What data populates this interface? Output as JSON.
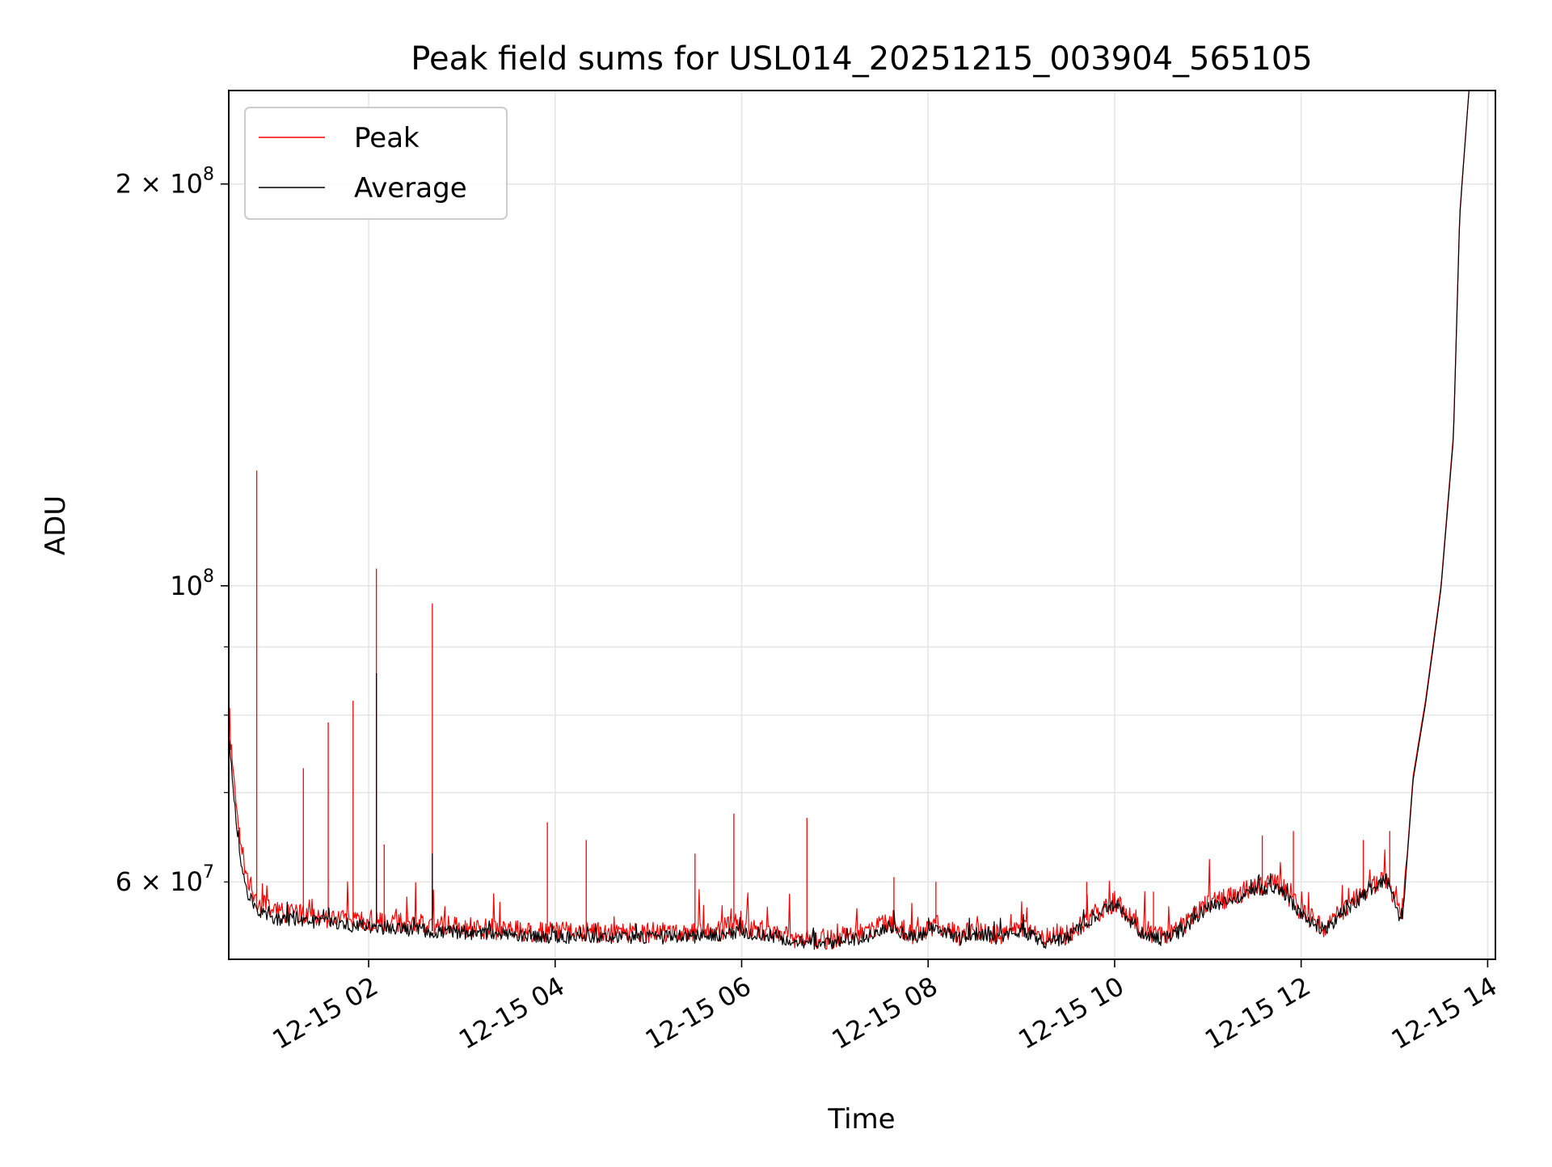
{
  "chart_data": {
    "type": "line",
    "title": "Peak field sums for USL014_20251215_003904_565105",
    "xlabel": "Time",
    "ylabel": "ADU",
    "x_scale": "time",
    "y_scale": "log",
    "xlim": [
      "2025-12-15T00:30",
      "2025-12-15T14:05"
    ],
    "ylim": [
      52500000,
      235000000
    ],
    "x_ticks": [
      {
        "value": "2025-12-15T02:00",
        "label": "12-15 02"
      },
      {
        "value": "2025-12-15T04:00",
        "label": "12-15 04"
      },
      {
        "value": "2025-12-15T06:00",
        "label": "12-15 06"
      },
      {
        "value": "2025-12-15T08:00",
        "label": "12-15 08"
      },
      {
        "value": "2025-12-15T10:00",
        "label": "12-15 10"
      },
      {
        "value": "2025-12-15T12:00",
        "label": "12-15 12"
      },
      {
        "value": "2025-12-15T14:00",
        "label": "12-15 14"
      }
    ],
    "y_major_ticks": [
      {
        "value": 100000000,
        "base": "10",
        "exp": "8",
        "coef": ""
      },
      {
        "value": 200000000,
        "base": "10",
        "exp": "8",
        "coef": "2 × "
      }
    ],
    "y_minor_ticks": [
      {
        "value": 60000000,
        "base": "10",
        "exp": "7",
        "coef": "6 × "
      },
      {
        "value": 70000000
      },
      {
        "value": 80000000
      },
      {
        "value": 90000000
      }
    ],
    "grid": true,
    "legend_position": "top-left",
    "series": [
      {
        "name": "Peak",
        "color": "#ff0000",
        "x": [
          "2025-12-15T00:30",
          "2025-12-15T00:36",
          "2025-12-15T00:42",
          "2025-12-15T00:48",
          "2025-12-15T01:00",
          "2025-12-15T01:30",
          "2025-12-15T02:00",
          "2025-12-15T02:30",
          "2025-12-15T03:00",
          "2025-12-15T03:30",
          "2025-12-15T04:00",
          "2025-12-15T04:30",
          "2025-12-15T05:00",
          "2025-12-15T05:30",
          "2025-12-15T06:00",
          "2025-12-15T06:20",
          "2025-12-15T06:40",
          "2025-12-15T07:00",
          "2025-12-15T07:20",
          "2025-12-15T07:35",
          "2025-12-15T07:50",
          "2025-12-15T08:05",
          "2025-12-15T08:20",
          "2025-12-15T08:30",
          "2025-12-15T08:45",
          "2025-12-15T09:00",
          "2025-12-15T09:15",
          "2025-12-15T09:30",
          "2025-12-15T09:45",
          "2025-12-15T10:00",
          "2025-12-15T10:15",
          "2025-12-15T10:30",
          "2025-12-15T10:45",
          "2025-12-15T11:00",
          "2025-12-15T11:15",
          "2025-12-15T11:30",
          "2025-12-15T11:45",
          "2025-12-15T12:00",
          "2025-12-15T12:15",
          "2025-12-15T12:30",
          "2025-12-15T12:45",
          "2025-12-15T12:55",
          "2025-12-15T13:05",
          "2025-12-15T13:12",
          "2025-12-15T13:20",
          "2025-12-15T13:30",
          "2025-12-15T13:38",
          "2025-12-15T13:42",
          "2025-12-15T13:48"
        ],
        "values": [
          79000000,
          66000000,
          60000000,
          58000000,
          57000000,
          56500000,
          56000000,
          55800000,
          55500000,
          55200000,
          55000000,
          55000000,
          55000000,
          55000000,
          55300000,
          55000000,
          54300000,
          54400000,
          55000000,
          56000000,
          54800000,
          55800000,
          54700000,
          55200000,
          54800000,
          55500000,
          54400000,
          54800000,
          56500000,
          58000000,
          55500000,
          54600000,
          55600000,
          57800000,
          58500000,
          59500000,
          59800000,
          57000000,
          55500000,
          57600000,
          59500000,
          60500000,
          56000000,
          72000000,
          82000000,
          100000000,
          130000000,
          190000000,
          235000000
        ],
        "spikes": [
          {
            "x": "2025-12-15T00:48",
            "value": 122000000
          },
          {
            "x": "2025-12-15T01:18",
            "value": 73000000
          },
          {
            "x": "2025-12-15T01:34",
            "value": 79000000
          },
          {
            "x": "2025-12-15T01:50",
            "value": 82000000
          },
          {
            "x": "2025-12-15T02:05",
            "value": 103000000
          },
          {
            "x": "2025-12-15T02:10",
            "value": 64000000
          },
          {
            "x": "2025-12-15T02:41",
            "value": 97000000
          },
          {
            "x": "2025-12-15T03:55",
            "value": 66500000
          },
          {
            "x": "2025-12-15T04:20",
            "value": 64500000
          },
          {
            "x": "2025-12-15T05:30",
            "value": 63000000
          },
          {
            "x": "2025-12-15T05:55",
            "value": 67500000
          },
          {
            "x": "2025-12-15T06:42",
            "value": 67000000
          },
          {
            "x": "2025-12-15T07:38",
            "value": 60500000
          },
          {
            "x": "2025-12-15T08:05",
            "value": 60000000
          },
          {
            "x": "2025-12-15T09:42",
            "value": 60000000
          },
          {
            "x": "2025-12-15T10:25",
            "value": 59000000
          },
          {
            "x": "2025-12-15T11:35",
            "value": 65000000
          },
          {
            "x": "2025-12-15T11:55",
            "value": 65500000
          },
          {
            "x": "2025-12-15T12:40",
            "value": 64500000
          },
          {
            "x": "2025-12-15T12:57",
            "value": 65500000
          }
        ]
      },
      {
        "name": "Average",
        "color": "#000000",
        "x": [
          "2025-12-15T00:30",
          "2025-12-15T00:36",
          "2025-12-15T00:42",
          "2025-12-15T00:48",
          "2025-12-15T01:00",
          "2025-12-15T01:30",
          "2025-12-15T02:00",
          "2025-12-15T02:30",
          "2025-12-15T03:00",
          "2025-12-15T03:30",
          "2025-12-15T04:00",
          "2025-12-15T04:30",
          "2025-12-15T05:00",
          "2025-12-15T05:30",
          "2025-12-15T06:00",
          "2025-12-15T06:20",
          "2025-12-15T06:40",
          "2025-12-15T07:00",
          "2025-12-15T07:20",
          "2025-12-15T07:35",
          "2025-12-15T07:50",
          "2025-12-15T08:05",
          "2025-12-15T08:20",
          "2025-12-15T08:30",
          "2025-12-15T08:45",
          "2025-12-15T09:00",
          "2025-12-15T09:15",
          "2025-12-15T09:30",
          "2025-12-15T09:45",
          "2025-12-15T10:00",
          "2025-12-15T10:15",
          "2025-12-15T10:30",
          "2025-12-15T10:45",
          "2025-12-15T11:00",
          "2025-12-15T11:15",
          "2025-12-15T11:30",
          "2025-12-15T11:45",
          "2025-12-15T12:00",
          "2025-12-15T12:15",
          "2025-12-15T12:30",
          "2025-12-15T12:45",
          "2025-12-15T12:55",
          "2025-12-15T13:05",
          "2025-12-15T13:12",
          "2025-12-15T13:20",
          "2025-12-15T13:30",
          "2025-12-15T13:38",
          "2025-12-15T13:42",
          "2025-12-15T13:48"
        ],
        "values": [
          77000000,
          64000000,
          59000000,
          57000000,
          56300000,
          56000000,
          55500000,
          55200000,
          55000000,
          54800000,
          54600000,
          54500000,
          54500000,
          54600000,
          55000000,
          54700000,
          54000000,
          54100000,
          54600000,
          55600000,
          54500000,
          55500000,
          54400000,
          54900000,
          54500000,
          55200000,
          54100000,
          54500000,
          56200000,
          57800000,
          55200000,
          54300000,
          55300000,
          57500000,
          58200000,
          59200000,
          59500000,
          56700000,
          55200000,
          57300000,
          59200000,
          60200000,
          55700000,
          71500000,
          81500000,
          99500000,
          129000000,
          189000000,
          235000000
        ],
        "spikes": [
          {
            "x": "2025-12-15T02:05",
            "value": 86000000
          },
          {
            "x": "2025-12-15T02:41",
            "value": 63000000
          }
        ]
      }
    ]
  }
}
